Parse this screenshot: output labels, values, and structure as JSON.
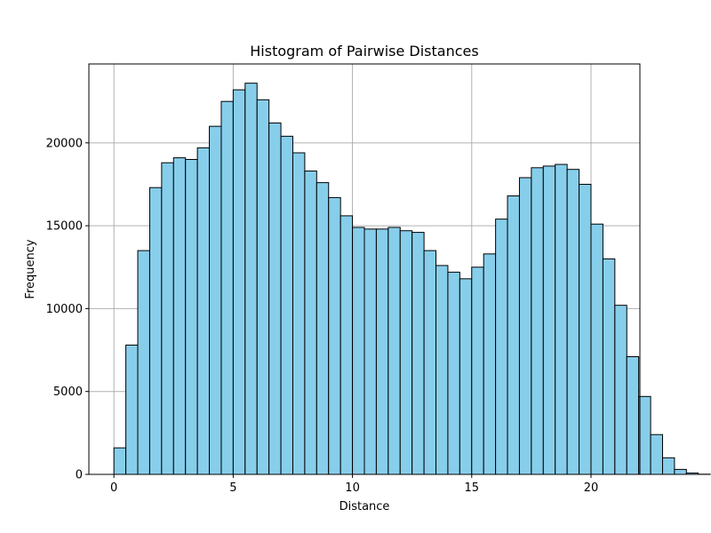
{
  "chart_data": {
    "type": "bar",
    "title": "Histogram of Pairwise Distances",
    "xlabel": "Distance",
    "ylabel": "Frequency",
    "xlim": [
      -1.05,
      22.05
    ],
    "ylim": [
      0,
      24760
    ],
    "xticks": [
      0,
      5,
      10,
      15,
      20
    ],
    "yticks": [
      0,
      5000,
      10000,
      15000,
      20000
    ],
    "grid": true,
    "bin_start": 0,
    "bin_width": 0.5,
    "values": [
      1600,
      7800,
      13500,
      17300,
      18800,
      19100,
      19000,
      19700,
      21000,
      22500,
      23200,
      23600,
      22600,
      21200,
      20400,
      19400,
      18300,
      17600,
      16700,
      15600,
      14900,
      14800,
      14800,
      14900,
      14700,
      14600,
      13500,
      12600,
      12200,
      11800,
      12500,
      13300,
      15400,
      16800,
      17900,
      18500,
      18600,
      18700,
      18400,
      17500,
      15100,
      13000,
      10200,
      7100,
      4700,
      2400,
      1000,
      300,
      80,
      10
    ],
    "colors": {
      "bar_fill": "#87ceeb",
      "bar_edge": "#000000",
      "grid": "#b0b0b0"
    }
  }
}
